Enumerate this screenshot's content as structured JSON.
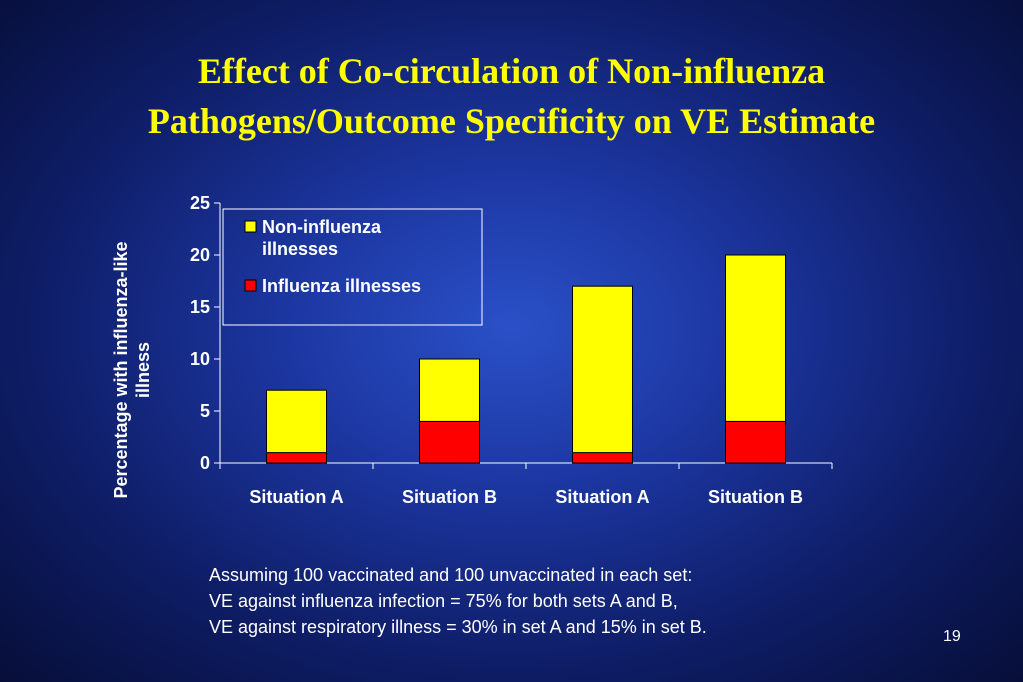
{
  "slide": {
    "title_lines": [
      "Effect of Co-circulation of Non-influenza",
      "Pathogens/Outcome Specificity on VE Estimate"
    ],
    "footnote_lines": [
      "Assuming 100 vaccinated and 100 unvaccinated in each set:",
      "VE against influenza infection = 75% for both sets A and B,",
      "VE against respiratory illness = 30% in set A and 15% in set B."
    ],
    "page_number": "19"
  },
  "colors": {
    "non_influenza": "#ffff00",
    "influenza": "#ff0000",
    "axis": "#ffffff",
    "text": "#ffffff",
    "title": "#ffff00"
  },
  "chart_data": {
    "type": "bar",
    "stacked": true,
    "categories": [
      "Situation A",
      "Situation B",
      "Situation A",
      "Situation B"
    ],
    "series": [
      {
        "name": "Influenza illnesses",
        "values": [
          1,
          4,
          1,
          4
        ],
        "color": "#ff0000"
      },
      {
        "name": "Non-influenza illnesses",
        "values": [
          6,
          6,
          16,
          16
        ],
        "color": "#ffff00"
      }
    ],
    "ylabel_lines": [
      "Percentage with influenza-like",
      "illness"
    ],
    "ylim": [
      0,
      25
    ],
    "yticks": [
      0,
      5,
      10,
      15,
      20,
      25
    ],
    "legend": {
      "placement": "top-left",
      "entries": [
        {
          "label_lines": [
            "Non-influenza",
            "illnesses"
          ],
          "color": "#ffff00"
        },
        {
          "label_lines": [
            "Influenza illnesses"
          ],
          "color": "#ff0000"
        }
      ]
    },
    "grid": false
  }
}
